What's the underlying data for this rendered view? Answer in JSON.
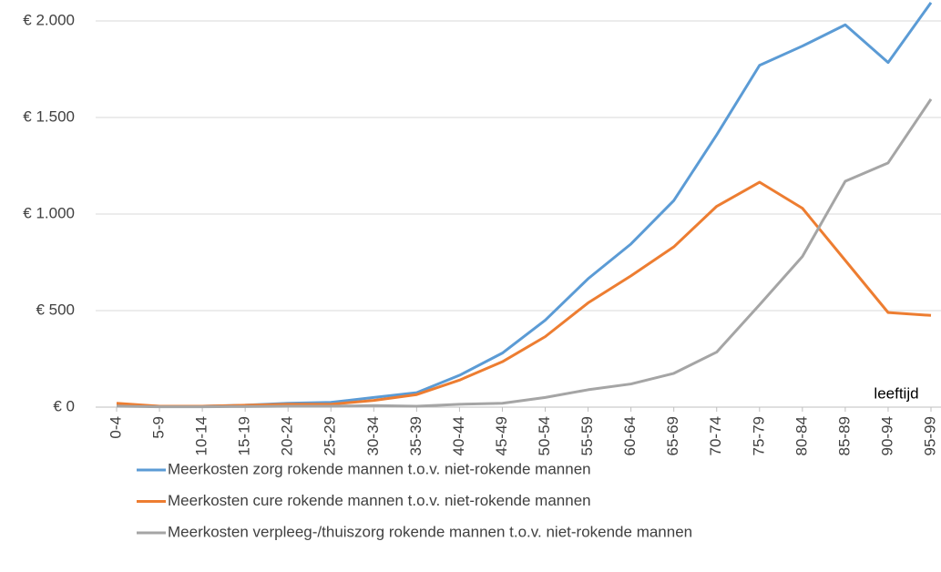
{
  "chart_data": {
    "type": "line",
    "x_label": "leeftijd",
    "categories": [
      "0-4",
      "5-9",
      "10-14",
      "15-19",
      "20-24",
      "25-29",
      "30-34",
      "35-39",
      "40-44",
      "45-49",
      "50-54",
      "55-59",
      "60-64",
      "65-69",
      "70-74",
      "75-79",
      "80-84",
      "85-89",
      "90-94",
      "95-99"
    ],
    "series": [
      {
        "name": "Meerkosten zorg rokende mannen t.o.v. niet-rokende mannen",
        "color": "#5b9bd5",
        "values": [
          10,
          5,
          5,
          10,
          20,
          25,
          50,
          75,
          165,
          280,
          450,
          665,
          845,
          1070,
          1410,
          1770,
          1870,
          1980,
          1785,
          2095
        ]
      },
      {
        "name": "Meerkosten cure rokende mannen t.o.v. niet-rokende mannen",
        "color": "#ed7d31",
        "values": [
          20,
          5,
          5,
          10,
          15,
          15,
          35,
          65,
          140,
          235,
          365,
          540,
          680,
          830,
          1040,
          1165,
          1030,
          760,
          490,
          475
        ]
      },
      {
        "name": "Meerkosten verpleeg-/thuiszorg rokende mannen t.o.v. niet-rokende mannen",
        "color": "#a5a5a5",
        "values": [
          5,
          2,
          2,
          3,
          5,
          5,
          8,
          5,
          15,
          20,
          50,
          90,
          120,
          175,
          285,
          530,
          780,
          1170,
          1265,
          1595
        ]
      }
    ],
    "ylim": [
      0,
      2100
    ],
    "yticks": [
      {
        "value": 0,
        "label": "€ 0"
      },
      {
        "value": 500,
        "label": "€ 500"
      },
      {
        "value": 1000,
        "label": "€ 1.000"
      },
      {
        "value": 1500,
        "label": "€ 1.500"
      },
      {
        "value": 2000,
        "label": "€ 2.000"
      }
    ],
    "grid": true,
    "legend": "bottom"
  }
}
